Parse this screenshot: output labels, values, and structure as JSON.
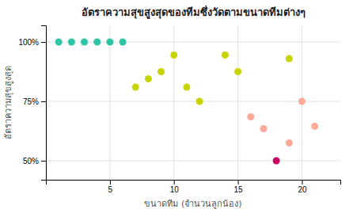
{
  "chart_data": {
    "type": "scatter",
    "title": "อัตราความสุขสูงสุดของทีมซึ่งวัดตามขนาดทีมต่างๆ",
    "x_label": "ขนาดทีม (จำนวนลูกน้อง)",
    "y_label": "อัตราความสุขสูงสุด",
    "x": [
      1,
      2,
      3,
      4,
      5,
      6,
      7,
      8,
      9,
      10,
      11,
      12,
      14,
      15,
      19,
      16,
      17,
      18,
      19,
      20,
      21
    ],
    "values": [
      1.0,
      1.0,
      1.0,
      1.0,
      1.0,
      1.0,
      0.81,
      0.845,
      0.875,
      0.945,
      0.81,
      0.75,
      0.945,
      0.875,
      0.93,
      0.685,
      0.635,
      0.5,
      0.575,
      0.75,
      0.645
    ],
    "colors": [
      "#2ec4a5",
      "#2ec4a5",
      "#2ec4a5",
      "#2ec4a5",
      "#2ec4a5",
      "#2ec4a5",
      "#c8d400",
      "#c8d400",
      "#c8d400",
      "#c8d400",
      "#c8d400",
      "#c8d400",
      "#c8d400",
      "#c8d400",
      "#c8d400",
      "#ffaa99",
      "#ffaa99",
      "#cc0066",
      "#ffaa99",
      "#ffaa99",
      "#ffaa99"
    ],
    "xlim": [
      0,
      23
    ],
    "ylim": [
      0.42,
      1.07
    ],
    "xticks": [
      5,
      10,
      15,
      20
    ],
    "yticks": [
      {
        "value": 0.5,
        "label": "50%"
      },
      {
        "value": 0.75,
        "label": "75%"
      },
      {
        "value": 1.0,
        "label": "100%"
      }
    ],
    "grid": true
  }
}
